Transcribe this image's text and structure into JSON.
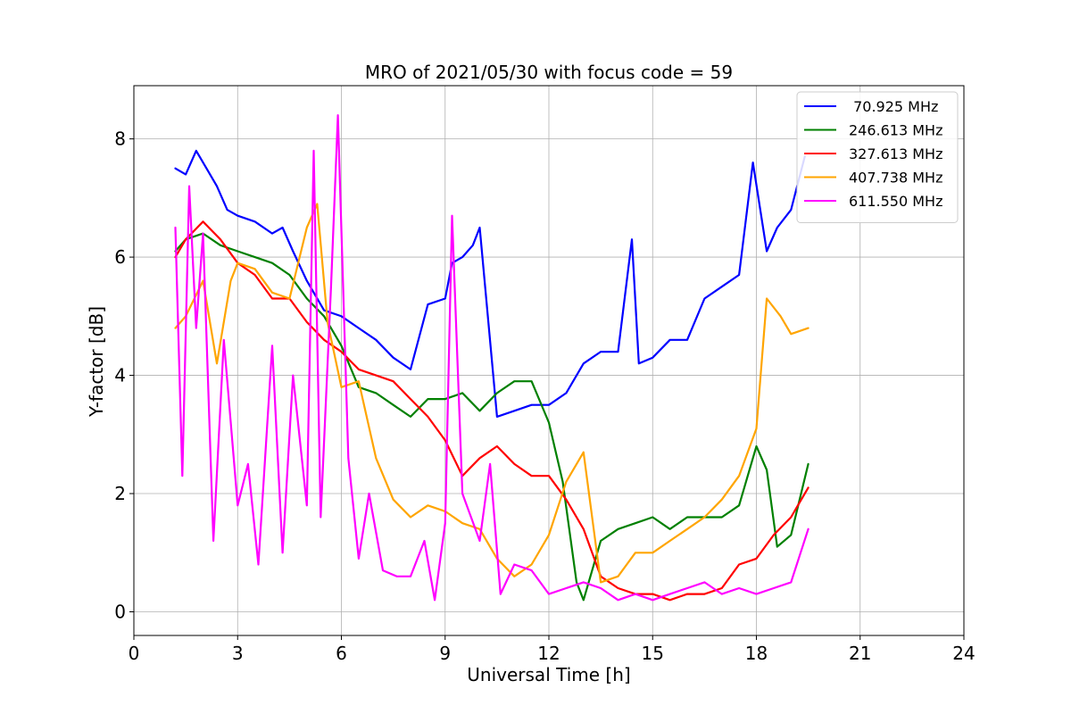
{
  "chart_data": {
    "type": "line",
    "title": "MRO of 2021/05/30 with focus code = 59",
    "xlabel": "Universal Time [h]",
    "ylabel": "Y-factor [dB]",
    "xlim": [
      0,
      24
    ],
    "ylim": [
      -0.4,
      8.9
    ],
    "xticks": [
      "0",
      "3",
      "6",
      "9",
      "12",
      "15",
      "18",
      "21",
      "24"
    ],
    "yticks": [
      "0",
      "2",
      "4",
      "6",
      "8"
    ],
    "grid": true,
    "legend_position": "top-right",
    "series": [
      {
        "name": " 70.925 MHz",
        "color": "#0000ff",
        "x": [
          1.2,
          1.5,
          1.8,
          2.1,
          2.4,
          2.7,
          3.0,
          3.5,
          4.0,
          4.3,
          4.6,
          5.0,
          5.5,
          6.0,
          6.5,
          7.0,
          7.5,
          8.0,
          8.5,
          9.0,
          9.2,
          9.5,
          9.8,
          10.0,
          10.5,
          11.0,
          11.5,
          12.0,
          12.5,
          13.0,
          13.5,
          14.0,
          14.4,
          14.6,
          15.0,
          15.5,
          16.0,
          16.5,
          17.0,
          17.5,
          17.9,
          18.3,
          18.6,
          19.0,
          19.4
        ],
        "y": [
          7.5,
          7.4,
          7.8,
          7.5,
          7.2,
          6.8,
          6.7,
          6.6,
          6.4,
          6.5,
          6.1,
          5.6,
          5.1,
          5.0,
          4.8,
          4.6,
          4.3,
          4.1,
          5.2,
          5.3,
          5.9,
          6.0,
          6.2,
          6.5,
          3.3,
          3.4,
          3.5,
          3.5,
          3.7,
          4.2,
          4.4,
          4.4,
          6.3,
          4.2,
          4.3,
          4.6,
          4.6,
          5.3,
          5.5,
          5.7,
          7.6,
          6.1,
          6.5,
          6.8,
          7.7
        ]
      },
      {
        "name": "246.613 MHz",
        "color": "#008000",
        "x": [
          1.2,
          1.5,
          2.0,
          2.5,
          3.0,
          3.5,
          4.0,
          4.5,
          5.0,
          5.5,
          6.0,
          6.5,
          7.0,
          7.5,
          8.0,
          8.5,
          9.0,
          9.5,
          10.0,
          10.5,
          11.0,
          11.5,
          12.0,
          12.4,
          12.8,
          13.0,
          13.5,
          14.0,
          14.5,
          15.0,
          15.5,
          16.0,
          16.5,
          17.0,
          17.5,
          18.0,
          18.3,
          18.6,
          19.0,
          19.5
        ],
        "y": [
          6.1,
          6.3,
          6.4,
          6.2,
          6.1,
          6.0,
          5.9,
          5.7,
          5.3,
          5.0,
          4.5,
          3.8,
          3.7,
          3.5,
          3.3,
          3.6,
          3.6,
          3.7,
          3.4,
          3.7,
          3.9,
          3.9,
          3.2,
          2.2,
          0.5,
          0.2,
          1.2,
          1.4,
          1.5,
          1.6,
          1.4,
          1.6,
          1.6,
          1.6,
          1.8,
          2.8,
          2.4,
          1.1,
          1.3,
          2.5
        ]
      },
      {
        "name": "327.613 MHz",
        "color": "#ff0000",
        "x": [
          1.2,
          1.5,
          2.0,
          2.5,
          3.0,
          3.5,
          4.0,
          4.5,
          5.0,
          5.5,
          6.0,
          6.5,
          7.0,
          7.5,
          8.0,
          8.5,
          9.0,
          9.5,
          10.0,
          10.5,
          11.0,
          11.5,
          12.0,
          12.5,
          13.0,
          13.5,
          14.0,
          14.5,
          15.0,
          15.5,
          16.0,
          16.5,
          17.0,
          17.5,
          18.0,
          18.5,
          19.0,
          19.5
        ],
        "y": [
          6.0,
          6.3,
          6.6,
          6.3,
          5.9,
          5.7,
          5.3,
          5.3,
          4.9,
          4.6,
          4.4,
          4.1,
          4.0,
          3.9,
          3.6,
          3.3,
          2.9,
          2.3,
          2.6,
          2.8,
          2.5,
          2.3,
          2.3,
          1.9,
          1.4,
          0.6,
          0.4,
          0.3,
          0.3,
          0.2,
          0.3,
          0.3,
          0.4,
          0.8,
          0.9,
          1.3,
          1.6,
          2.1
        ]
      },
      {
        "name": "407.738 MHz",
        "color": "#ffa500",
        "x": [
          1.2,
          1.5,
          2.0,
          2.4,
          2.8,
          3.0,
          3.5,
          4.0,
          4.5,
          5.0,
          5.3,
          5.6,
          6.0,
          6.5,
          7.0,
          7.5,
          8.0,
          8.5,
          9.0,
          9.5,
          10.0,
          10.5,
          11.0,
          11.5,
          12.0,
          12.5,
          13.0,
          13.5,
          14.0,
          14.5,
          15.0,
          15.5,
          16.0,
          16.5,
          17.0,
          17.5,
          18.0,
          18.3,
          18.7,
          19.0,
          19.5
        ],
        "y": [
          4.8,
          5.0,
          5.6,
          4.2,
          5.6,
          5.9,
          5.8,
          5.4,
          5.3,
          6.5,
          6.9,
          4.9,
          3.8,
          3.9,
          2.6,
          1.9,
          1.6,
          1.8,
          1.7,
          1.5,
          1.4,
          0.9,
          0.6,
          0.8,
          1.3,
          2.2,
          2.7,
          0.5,
          0.6,
          1.0,
          1.0,
          1.2,
          1.4,
          1.6,
          1.9,
          2.3,
          3.1,
          5.3,
          5.0,
          4.7,
          4.8
        ]
      },
      {
        "name": "611.550 MHz",
        "color": "#ff00ff",
        "x": [
          1.2,
          1.4,
          1.6,
          1.8,
          2.0,
          2.3,
          2.6,
          3.0,
          3.3,
          3.6,
          4.0,
          4.3,
          4.6,
          5.0,
          5.2,
          5.4,
          5.7,
          5.9,
          6.2,
          6.5,
          6.8,
          7.2,
          7.6,
          8.0,
          8.4,
          8.7,
          9.0,
          9.2,
          9.5,
          10.0,
          10.3,
          10.6,
          11.0,
          11.5,
          12.0,
          12.5,
          13.0,
          13.5,
          14.0,
          14.5,
          15.0,
          15.5,
          16.0,
          16.5,
          17.0,
          17.5,
          18.0,
          18.5,
          19.0,
          19.5
        ],
        "y": [
          6.5,
          2.3,
          7.2,
          4.8,
          6.4,
          1.2,
          4.6,
          1.8,
          2.5,
          0.8,
          4.5,
          1.0,
          4.0,
          1.8,
          7.8,
          1.6,
          5.5,
          8.4,
          2.6,
          0.9,
          2.0,
          0.7,
          0.6,
          0.6,
          1.2,
          0.2,
          1.5,
          6.7,
          2.0,
          1.2,
          2.5,
          0.3,
          0.8,
          0.7,
          0.3,
          0.4,
          0.5,
          0.4,
          0.2,
          0.3,
          0.2,
          0.3,
          0.4,
          0.5,
          0.3,
          0.4,
          0.3,
          0.4,
          0.5,
          1.4
        ]
      }
    ]
  }
}
